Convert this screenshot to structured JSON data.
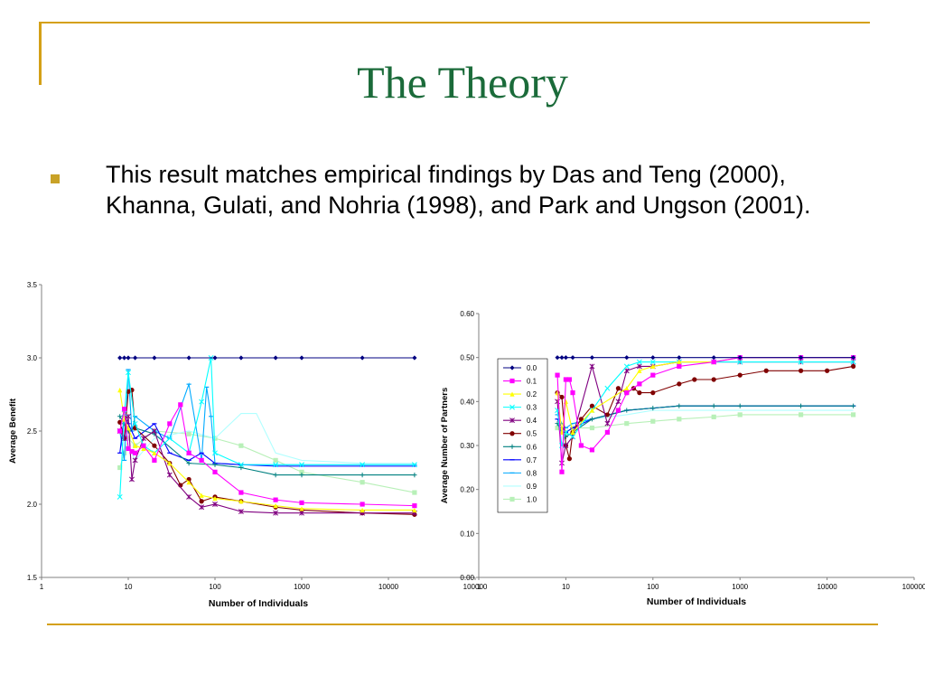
{
  "slide": {
    "title": "The Theory",
    "bullet_text": "This result matches empirical findings by Das and Teng (2000), Khanna, Gulati, and Nohria (1998), and Park and Ungson (2001)."
  },
  "colors": {
    "title": "#1b6b3a",
    "accent_line": "#d4a017",
    "bullet": "#c9a227"
  },
  "chart_data": [
    {
      "type": "line",
      "title": "",
      "xlabel": "Number of Individuals",
      "ylabel": "Average Benefit",
      "xscale": "log",
      "xlim": [
        1,
        100000
      ],
      "ylim": [
        1.5,
        3.5
      ],
      "x_ticks": [
        "1",
        "10",
        "100",
        "1000",
        "10000",
        "100000"
      ],
      "y_ticks": [
        "1.5",
        "2.0",
        "2.5",
        "3.0",
        "3.5"
      ],
      "grid": false,
      "series": [
        {
          "name": "0.0",
          "color": "#000080",
          "marker": "diamond",
          "x": [
            8,
            9,
            10,
            12,
            20,
            50,
            100,
            200,
            500,
            1000,
            5000,
            20000
          ],
          "y": [
            3.0,
            3.0,
            3.0,
            3.0,
            3.0,
            3.0,
            3.0,
            3.0,
            3.0,
            3.0,
            3.0,
            3.0
          ]
        },
        {
          "name": "0.1",
          "color": "#ff00ff",
          "marker": "square",
          "x": [
            8,
            9,
            10,
            11,
            12,
            15,
            20,
            30,
            40,
            50,
            70,
            100,
            200,
            500,
            1000,
            5000,
            20000
          ],
          "y": [
            2.5,
            2.65,
            2.38,
            2.36,
            2.35,
            2.4,
            2.3,
            2.55,
            2.68,
            2.35,
            2.3,
            2.22,
            2.08,
            2.03,
            2.01,
            2.0,
            1.99
          ]
        },
        {
          "name": "0.2",
          "color": "#ffff00",
          "marker": "triangle",
          "x": [
            8,
            9,
            10,
            12,
            15,
            20,
            30,
            50,
            70,
            100,
            200,
            500,
            1000,
            5000,
            20000
          ],
          "y": [
            2.78,
            2.58,
            2.52,
            2.4,
            2.38,
            2.35,
            2.28,
            2.15,
            2.06,
            2.04,
            2.02,
            1.99,
            1.97,
            1.96,
            1.96
          ]
        },
        {
          "name": "0.3",
          "color": "#00ffff",
          "marker": "x",
          "x": [
            8,
            9,
            10,
            12,
            15,
            20,
            30,
            50,
            70,
            90,
            100,
            200,
            500,
            1000,
            5000,
            20000
          ],
          "y": [
            2.05,
            2.62,
            2.9,
            2.55,
            2.4,
            2.35,
            2.45,
            2.35,
            2.7,
            3.0,
            2.35,
            2.27,
            2.27,
            2.27,
            2.27,
            2.27
          ]
        },
        {
          "name": "0.4",
          "color": "#800080",
          "marker": "star",
          "x": [
            8,
            9,
            10,
            11,
            12,
            15,
            20,
            30,
            50,
            70,
            100,
            200,
            500,
            1000,
            5000,
            20000
          ],
          "y": [
            2.5,
            2.45,
            2.6,
            2.17,
            2.3,
            2.45,
            2.5,
            2.2,
            2.05,
            1.98,
            2.0,
            1.95,
            1.94,
            1.94,
            1.94,
            1.94
          ]
        },
        {
          "name": "0.5",
          "color": "#800000",
          "marker": "circle",
          "x": [
            8,
            9,
            10,
            11,
            12,
            20,
            30,
            40,
            50,
            70,
            100,
            200,
            500,
            1000,
            5000,
            20000
          ],
          "y": [
            2.56,
            2.45,
            2.77,
            2.78,
            2.52,
            2.4,
            2.28,
            2.13,
            2.17,
            2.02,
            2.05,
            2.02,
            1.98,
            1.96,
            1.94,
            1.93
          ]
        },
        {
          "name": "0.6",
          "color": "#008080",
          "marker": "plus",
          "x": [
            8,
            9,
            10,
            12,
            20,
            50,
            100,
            200,
            500,
            1000,
            5000,
            20000
          ],
          "y": [
            2.6,
            2.55,
            2.5,
            2.52,
            2.48,
            2.28,
            2.27,
            2.25,
            2.2,
            2.2,
            2.2,
            2.2
          ]
        },
        {
          "name": "0.7",
          "color": "#0000ff",
          "marker": "dash",
          "x": [
            8,
            9,
            10,
            12,
            20,
            30,
            50,
            70,
            100,
            200,
            500,
            1000,
            5000,
            20000
          ],
          "y": [
            2.35,
            2.6,
            2.55,
            2.45,
            2.55,
            2.35,
            2.3,
            2.35,
            2.28,
            2.27,
            2.26,
            2.26,
            2.26,
            2.26
          ]
        },
        {
          "name": "0.8",
          "color": "#00aaff",
          "marker": "dash",
          "x": [
            8,
            9,
            10,
            11,
            12,
            20,
            30,
            50,
            70,
            80,
            90,
            100,
            200,
            500,
            1000,
            5000,
            20000
          ],
          "y": [
            2.5,
            2.3,
            2.92,
            2.5,
            2.6,
            2.5,
            2.45,
            2.82,
            2.3,
            2.8,
            2.6,
            2.28,
            2.27,
            2.27,
            2.27,
            2.27,
            2.27
          ]
        },
        {
          "name": "0.9",
          "color": "#b0ffff",
          "marker": "none",
          "x": [
            8,
            9,
            10,
            12,
            20,
            50,
            100,
            200,
            300,
            500,
            1000,
            5000,
            20000
          ],
          "y": [
            2.55,
            2.5,
            2.4,
            2.3,
            2.45,
            2.5,
            2.45,
            2.62,
            2.62,
            2.35,
            2.3,
            2.28,
            2.28
          ]
        },
        {
          "name": "1.0",
          "color": "#b8f0b8",
          "marker": "square",
          "x": [
            8,
            9,
            10,
            12,
            20,
            50,
            100,
            200,
            500,
            1000,
            5000,
            20000
          ],
          "y": [
            2.25,
            2.35,
            2.45,
            2.4,
            2.5,
            2.48,
            2.45,
            2.4,
            2.3,
            2.22,
            2.15,
            2.08
          ]
        }
      ]
    },
    {
      "type": "line",
      "title": "",
      "xlabel": "Number of Individuals",
      "ylabel": "Average Number of Partners",
      "xscale": "log",
      "xlim": [
        1,
        100000
      ],
      "ylim": [
        0.0,
        0.6
      ],
      "x_ticks": [
        "1",
        "10",
        "100",
        "1000",
        "10000",
        "100000"
      ],
      "y_ticks": [
        "0.00",
        "0.10",
        "0.20",
        "0.30",
        "0.40",
        "0.50",
        "0.60"
      ],
      "grid": false,
      "legend_position": "left",
      "series": [
        {
          "name": "0.0",
          "color": "#000080",
          "marker": "diamond",
          "x": [
            8,
            9,
            10,
            12,
            20,
            50,
            100,
            200,
            500,
            1000,
            5000,
            20000
          ],
          "y": [
            0.5,
            0.5,
            0.5,
            0.5,
            0.5,
            0.5,
            0.5,
            0.5,
            0.5,
            0.5,
            0.5,
            0.5
          ]
        },
        {
          "name": "0.1",
          "color": "#ff00ff",
          "marker": "square",
          "x": [
            8,
            9,
            10,
            11,
            12,
            15,
            20,
            30,
            40,
            50,
            70,
            100,
            200,
            500,
            1000,
            5000,
            20000
          ],
          "y": [
            0.46,
            0.24,
            0.45,
            0.45,
            0.42,
            0.3,
            0.29,
            0.33,
            0.38,
            0.42,
            0.44,
            0.46,
            0.48,
            0.49,
            0.5,
            0.5,
            0.5
          ]
        },
        {
          "name": "0.2",
          "color": "#ffff00",
          "marker": "triangle",
          "x": [
            8,
            9,
            10,
            12,
            20,
            50,
            70,
            100,
            200,
            500,
            1000,
            5000,
            20000
          ],
          "y": [
            0.42,
            0.33,
            0.4,
            0.33,
            0.38,
            0.43,
            0.47,
            0.48,
            0.49,
            0.49,
            0.5,
            0.5,
            0.5
          ]
        },
        {
          "name": "0.3",
          "color": "#00ffff",
          "marker": "x",
          "x": [
            8,
            9,
            10,
            12,
            20,
            30,
            50,
            70,
            100,
            200,
            500,
            1000,
            5000,
            20000
          ],
          "y": [
            0.38,
            0.3,
            0.33,
            0.32,
            0.38,
            0.43,
            0.48,
            0.49,
            0.49,
            0.49,
            0.49,
            0.49,
            0.49,
            0.49
          ]
        },
        {
          "name": "0.4",
          "color": "#800080",
          "marker": "star",
          "x": [
            8,
            9,
            10,
            12,
            20,
            30,
            40,
            50,
            70,
            100,
            200,
            500,
            1000,
            5000,
            20000
          ],
          "y": [
            0.4,
            0.26,
            0.3,
            0.32,
            0.48,
            0.35,
            0.4,
            0.47,
            0.48,
            0.48,
            0.49,
            0.49,
            0.49,
            0.49,
            0.49
          ]
        },
        {
          "name": "0.5",
          "color": "#800000",
          "marker": "circle",
          "x": [
            8,
            9,
            10,
            11,
            12,
            15,
            20,
            30,
            40,
            50,
            60,
            70,
            100,
            200,
            300,
            500,
            1000,
            2000,
            5000,
            10000,
            20000
          ],
          "y": [
            0.42,
            0.41,
            0.3,
            0.27,
            0.33,
            0.36,
            0.39,
            0.37,
            0.43,
            0.42,
            0.43,
            0.42,
            0.42,
            0.44,
            0.45,
            0.45,
            0.46,
            0.47,
            0.47,
            0.47,
            0.48
          ]
        },
        {
          "name": "0.6",
          "color": "#008080",
          "marker": "plus",
          "x": [
            8,
            9,
            10,
            12,
            20,
            50,
            100,
            200,
            500,
            1000,
            5000,
            20000
          ],
          "y": [
            0.35,
            0.33,
            0.32,
            0.33,
            0.36,
            0.38,
            0.385,
            0.39,
            0.39,
            0.39,
            0.39,
            0.39
          ]
        },
        {
          "name": "0.7",
          "color": "#0000ff",
          "marker": "dash",
          "x": [
            8,
            9,
            10,
            12,
            20,
            50,
            100,
            200,
            500,
            1000,
            5000,
            20000
          ],
          "y": [
            0.36,
            0.34,
            0.33,
            0.34,
            0.36,
            0.38,
            0.385,
            0.39,
            0.39,
            0.39,
            0.39,
            0.39
          ]
        },
        {
          "name": "0.8",
          "color": "#00aaff",
          "marker": "dash",
          "x": [
            8,
            9,
            10,
            12,
            20,
            50,
            100,
            200,
            500,
            1000,
            5000,
            20000
          ],
          "y": [
            0.37,
            0.35,
            0.34,
            0.35,
            0.36,
            0.38,
            0.385,
            0.39,
            0.39,
            0.39,
            0.39,
            0.39
          ]
        },
        {
          "name": "0.9",
          "color": "#b0ffff",
          "marker": "none",
          "x": [
            8,
            9,
            10,
            12,
            20,
            50,
            100,
            200,
            500,
            1000,
            5000,
            20000
          ],
          "y": [
            0.35,
            0.34,
            0.34,
            0.35,
            0.36,
            0.37,
            0.38,
            0.38,
            0.38,
            0.38,
            0.38,
            0.38
          ]
        },
        {
          "name": "1.0",
          "color": "#b8f0b8",
          "marker": "square",
          "x": [
            8,
            9,
            10,
            12,
            20,
            50,
            100,
            200,
            500,
            1000,
            5000,
            20000
          ],
          "y": [
            0.34,
            0.33,
            0.33,
            0.34,
            0.34,
            0.35,
            0.355,
            0.36,
            0.365,
            0.37,
            0.37,
            0.37
          ]
        }
      ]
    }
  ]
}
